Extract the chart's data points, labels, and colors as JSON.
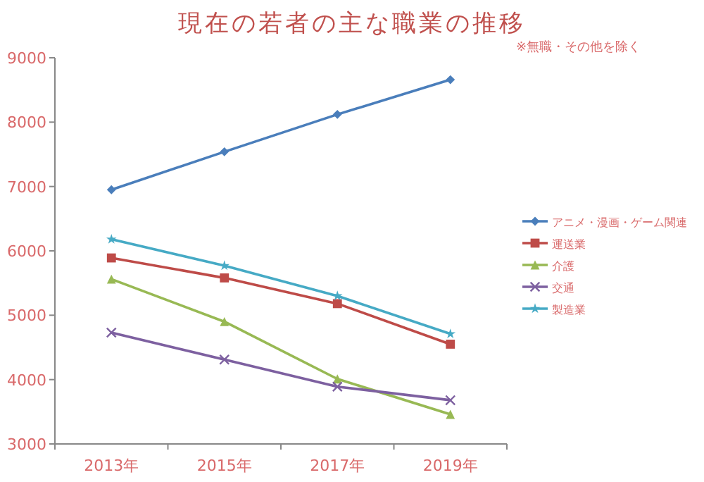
{
  "chart_data": {
    "type": "line",
    "title": "現在の若者の主な職業の推移",
    "annotations": [
      "※無職・その他を除く"
    ],
    "categories": [
      "2013年",
      "2015年",
      "2017年",
      "2019年"
    ],
    "ylim": [
      3000,
      9000
    ],
    "yticks": [
      3000,
      4000,
      5000,
      6000,
      7000,
      8000,
      9000
    ],
    "grid": false,
    "legend": "right",
    "line_style": "solid",
    "series": [
      {
        "name": "アニメ・漫画・ゲーム関連",
        "color": "#4a7ebb",
        "marker": "diamond",
        "values": [
          6950,
          7540,
          8120,
          8660
        ]
      },
      {
        "name": "運送業",
        "color": "#be4b48",
        "marker": "square",
        "values": [
          5890,
          5580,
          5180,
          4550
        ]
      },
      {
        "name": "介護",
        "color": "#98b954",
        "marker": "triangle",
        "values": [
          5560,
          4900,
          4010,
          3460
        ]
      },
      {
        "name": "交通",
        "color": "#7d60a0",
        "marker": "cross",
        "values": [
          4730,
          4310,
          3890,
          3680
        ]
      },
      {
        "name": "製造業",
        "color": "#46aac5",
        "marker": "star",
        "values": [
          6180,
          5770,
          5300,
          4710
        ]
      }
    ]
  }
}
